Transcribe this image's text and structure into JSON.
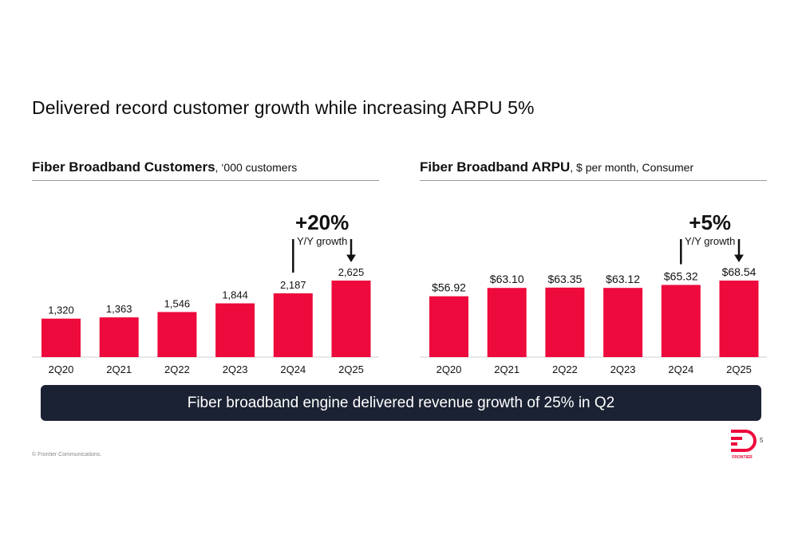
{
  "title": "Delivered record customer growth while increasing ARPU 5%",
  "colors": {
    "bar": "#ee0a3c",
    "banner": "#1b2233",
    "text": "#111111"
  },
  "left_header": {
    "bold": "Fiber Broadband Customers",
    "rest": ", ‘000 customers"
  },
  "right_header": {
    "bold": "Fiber Broadband ARPU",
    "rest": ", $ per month, Consumer"
  },
  "banner_text": "Fiber broadband engine delivered revenue growth of 25% in Q2",
  "copyright": "© Frontier Communications.",
  "page_number": "5",
  "logo": {
    "icon": "frontier-logo-icon",
    "text": "FRONTIER"
  },
  "chart_data": [
    {
      "type": "bar",
      "title": "Fiber Broadband Customers",
      "categories": [
        "2Q20",
        "2Q21",
        "2Q22",
        "2Q23",
        "2Q24",
        "2Q25"
      ],
      "values": [
        1320,
        1363,
        1546,
        1844,
        2187,
        2625
      ],
      "value_labels": [
        "1,320",
        "1,363",
        "1,546",
        "1,844",
        "2,187",
        "2,625"
      ],
      "ylim": [
        0,
        2625
      ],
      "annotation": {
        "value": "+20%",
        "text": "Y/Y growth",
        "from": "2Q24",
        "to": "2Q25"
      }
    },
    {
      "type": "bar",
      "title": "Fiber Broadband ARPU",
      "categories": [
        "2Q20",
        "2Q21",
        "2Q22",
        "2Q23",
        "2Q24",
        "2Q25"
      ],
      "values": [
        56.92,
        63.1,
        63.35,
        63.12,
        65.32,
        68.54
      ],
      "value_labels": [
        "$56.92",
        "$63.10",
        "$63.35",
        "$63.12",
        "$65.32",
        "$68.54"
      ],
      "ylim": [
        0,
        68.54
      ],
      "annotation": {
        "value": "+5%",
        "text": "Y/Y growth",
        "from": "2Q24",
        "to": "2Q25"
      }
    }
  ]
}
